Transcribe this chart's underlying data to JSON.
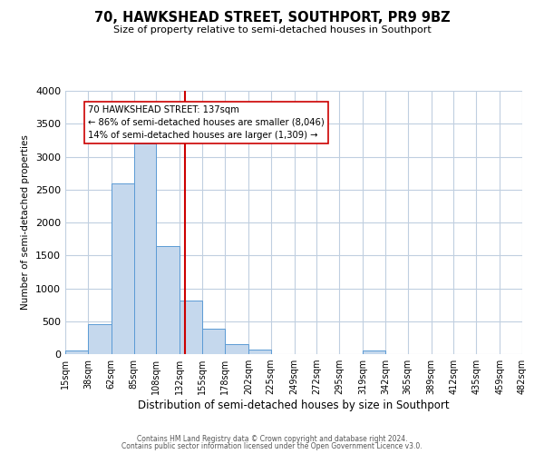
{
  "title": "70, HAWKSHEAD STREET, SOUTHPORT, PR9 9BZ",
  "subtitle": "Size of property relative to semi-detached houses in Southport",
  "xlabel": "Distribution of semi-detached houses by size in Southport",
  "ylabel": "Number of semi-detached properties",
  "bin_labels": [
    "15sqm",
    "38sqm",
    "62sqm",
    "85sqm",
    "108sqm",
    "132sqm",
    "155sqm",
    "178sqm",
    "202sqm",
    "225sqm",
    "249sqm",
    "272sqm",
    "295sqm",
    "319sqm",
    "342sqm",
    "365sqm",
    "389sqm",
    "412sqm",
    "435sqm",
    "459sqm",
    "482sqm"
  ],
  "bin_edges": [
    15,
    38,
    62,
    85,
    108,
    132,
    155,
    178,
    202,
    225,
    249,
    272,
    295,
    319,
    342,
    365,
    389,
    412,
    435,
    459,
    482
  ],
  "bar_heights": [
    50,
    460,
    2600,
    3200,
    1640,
    810,
    380,
    155,
    70,
    0,
    0,
    0,
    0,
    50,
    0,
    0,
    0,
    0,
    0,
    0
  ],
  "bar_color": "#c5d8ed",
  "bar_edge_color": "#5b9bd5",
  "property_value": 137,
  "vline_color": "#cc0000",
  "annotation_title": "70 HAWKSHEAD STREET: 137sqm",
  "annotation_line1": "← 86% of semi-detached houses are smaller (8,046)",
  "annotation_line2": "14% of semi-detached houses are larger (1,309) →",
  "annotation_box_color": "#ffffff",
  "annotation_box_edge": "#cc0000",
  "ylim": [
    0,
    4000
  ],
  "footer1": "Contains HM Land Registry data © Crown copyright and database right 2024.",
  "footer2": "Contains public sector information licensed under the Open Government Licence v3.0.",
  "background_color": "#ffffff",
  "grid_color": "#c0cfe0"
}
